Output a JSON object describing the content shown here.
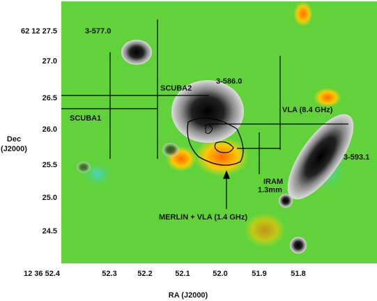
{
  "axes": {
    "x_label": "RA (J2000)",
    "y_label": [
      "Dec",
      "(J2000)"
    ],
    "x_ticks": [
      "12 36 52.4",
      "52.3",
      "52.2",
      "52.1",
      "52.0",
      "51.9",
      "51.8"
    ],
    "y_ticks": [
      "62 12 27.5",
      "27.0",
      "26.5",
      "26.0",
      "25.5",
      "25.0",
      "24.5"
    ]
  },
  "annotations": [
    "3-577.0",
    "SCUBA2",
    "3-586.0",
    "SCUBA1",
    "VLA  (8.4 GHz)",
    "3-593.1",
    "IRAM",
    "1.3mm",
    "MERLIN + VLA  (1.4 GHz)"
  ]
}
